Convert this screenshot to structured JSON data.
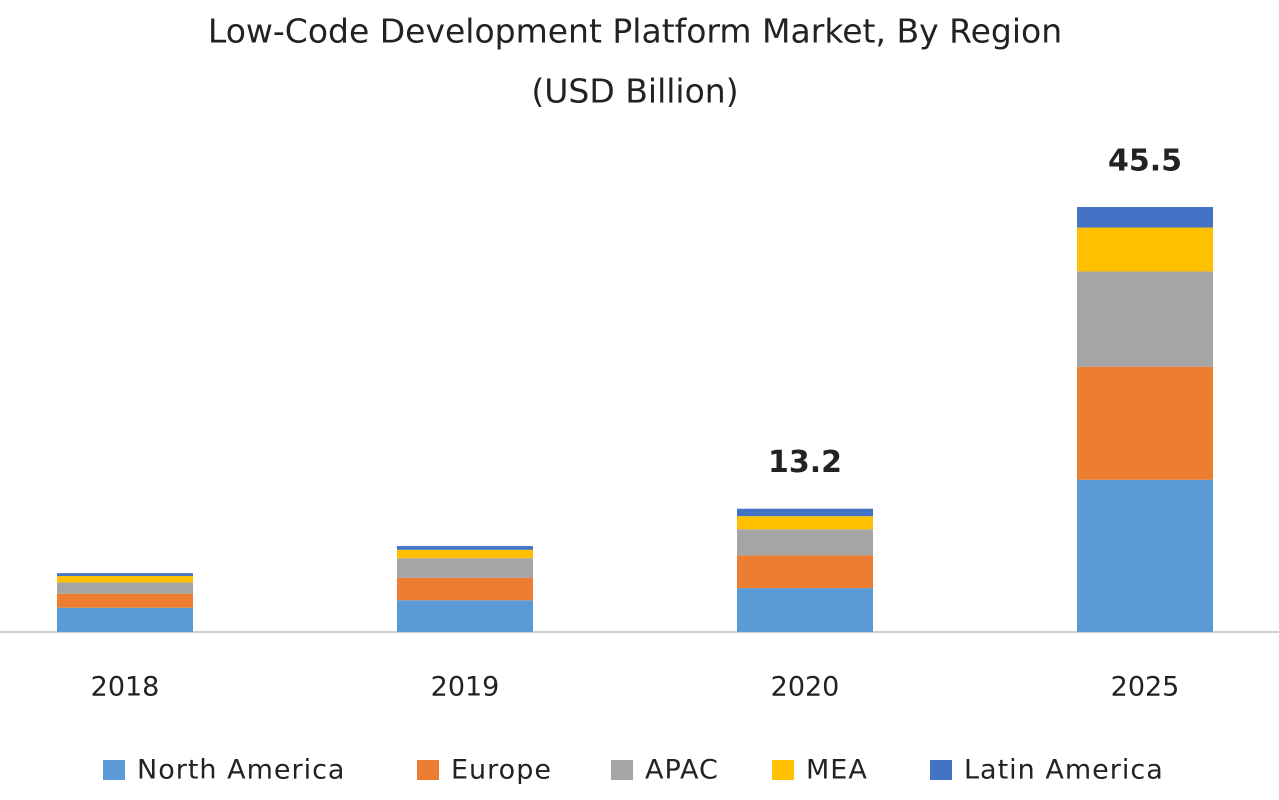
{
  "chart_data": {
    "type": "stacked_bar",
    "title": "Low-Code Development Platform Market, By Region",
    "subtitle": "(USD Billion)",
    "categories": [
      "2018",
      "2019",
      "2020",
      "2025"
    ],
    "series": [
      {
        "name": "North America",
        "color": "#5b9bd5",
        "values": [
          2.6,
          3.4,
          4.7,
          16.3
        ]
      },
      {
        "name": "Europe",
        "color": "#ed7d31",
        "values": [
          1.5,
          2.4,
          3.5,
          12.1
        ]
      },
      {
        "name": "APAC",
        "color": "#a5a5a5",
        "values": [
          1.2,
          2.1,
          2.8,
          10.2
        ]
      },
      {
        "name": "MEA",
        "color": "#ffc000",
        "values": [
          0.7,
          0.9,
          1.4,
          4.7
        ]
      },
      {
        "name": "Latin America",
        "color": "#4472c4",
        "values": [
          0.3,
          0.4,
          0.8,
          2.2
        ]
      }
    ],
    "total_labels": [
      null,
      null,
      13.2,
      45.5
    ],
    "legend": "bottom"
  }
}
